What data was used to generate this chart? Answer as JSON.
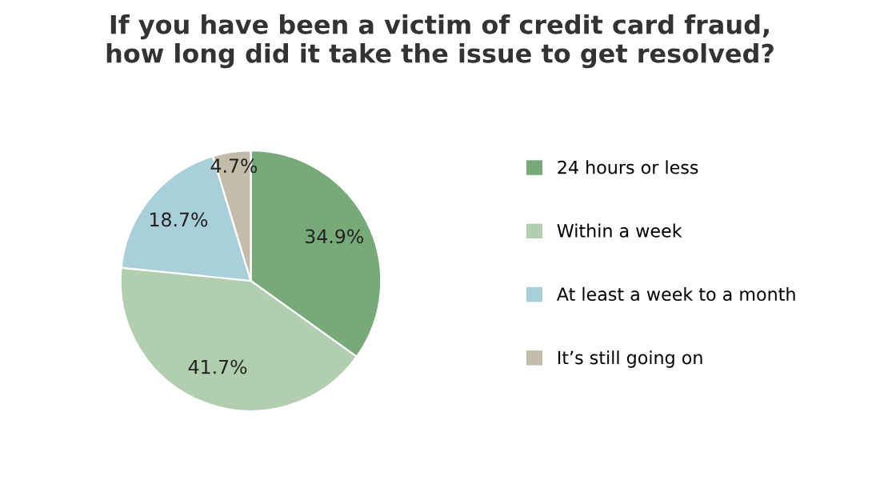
{
  "chart_data": {
    "type": "pie",
    "title": "If you have been a victim of credit card fraud,\nhow long did it take the issue to get resolved?",
    "categories": [
      "24 hours or less",
      "Within a week",
      "At least a week to a month",
      "It’s still going on"
    ],
    "values": [
      34.9,
      41.7,
      18.7,
      4.7
    ],
    "colors": [
      "#78a978",
      "#b1cfaf",
      "#a9cfd9",
      "#c3bcab"
    ],
    "value_labels": [
      "34.9%",
      "41.7%",
      "18.7%",
      "4.7%"
    ],
    "legend": "right"
  }
}
